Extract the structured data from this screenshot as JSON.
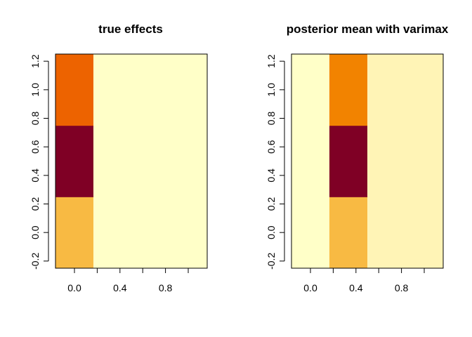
{
  "chart_data": [
    {
      "type": "heatmap",
      "title": "true effects",
      "xlabel": "",
      "ylabel": "",
      "x_centers": [
        0.0,
        0.333,
        0.667,
        1.0
      ],
      "y_centers": [
        0.0,
        0.5,
        1.0
      ],
      "xlim": [
        -0.1667,
        1.1667
      ],
      "ylim": [
        -0.25,
        1.25
      ],
      "x_ticks": [
        0.0,
        0.2,
        0.4,
        0.6,
        0.8,
        1.0
      ],
      "x_tick_labels": [
        "0.0",
        "",
        "0.4",
        "",
        "0.8",
        ""
      ],
      "y_ticks": [
        -0.2,
        0.0,
        0.2,
        0.4,
        0.6,
        0.8,
        1.0,
        1.2
      ],
      "y_tick_labels": [
        "-0.2",
        "0.0",
        "0.2",
        "0.4",
        "0.6",
        "0.8",
        "1.0",
        "1.2"
      ],
      "colors": [
        [
          "#F8BA43",
          "#FFFFC8",
          "#FFFFC8",
          "#FFFFC8"
        ],
        [
          "#7F0025",
          "#FFFFC8",
          "#FFFFC8",
          "#FFFFC8"
        ],
        [
          "#ED6300",
          "#FFFFC8",
          "#FFFFC8",
          "#FFFFC8"
        ]
      ]
    },
    {
      "type": "heatmap",
      "title": "posterior mean with varimax",
      "xlabel": "",
      "ylabel": "",
      "x_centers": [
        0.0,
        0.333,
        0.667,
        1.0
      ],
      "y_centers": [
        0.0,
        0.5,
        1.0
      ],
      "xlim": [
        -0.1667,
        1.1667
      ],
      "ylim": [
        -0.25,
        1.25
      ],
      "x_ticks": [
        0.0,
        0.2,
        0.4,
        0.6,
        0.8,
        1.0
      ],
      "x_tick_labels": [
        "0.0",
        "",
        "0.4",
        "",
        "0.8",
        ""
      ],
      "y_ticks": [
        -0.2,
        0.0,
        0.2,
        0.4,
        0.6,
        0.8,
        1.0,
        1.2
      ],
      "y_tick_labels": [
        "-0.2",
        "0.0",
        "0.2",
        "0.4",
        "0.6",
        "0.8",
        "1.0",
        "1.2"
      ],
      "colors": [
        [
          "#FFFFC8",
          "#F8BA43",
          "#FFF4B6",
          "#FFF4B6"
        ],
        [
          "#FFFFC8",
          "#7F0025",
          "#FFF4B6",
          "#FFF4B6"
        ],
        [
          "#FFFFC8",
          "#F28300",
          "#FFF4B6",
          "#FFF4B6"
        ]
      ]
    }
  ]
}
